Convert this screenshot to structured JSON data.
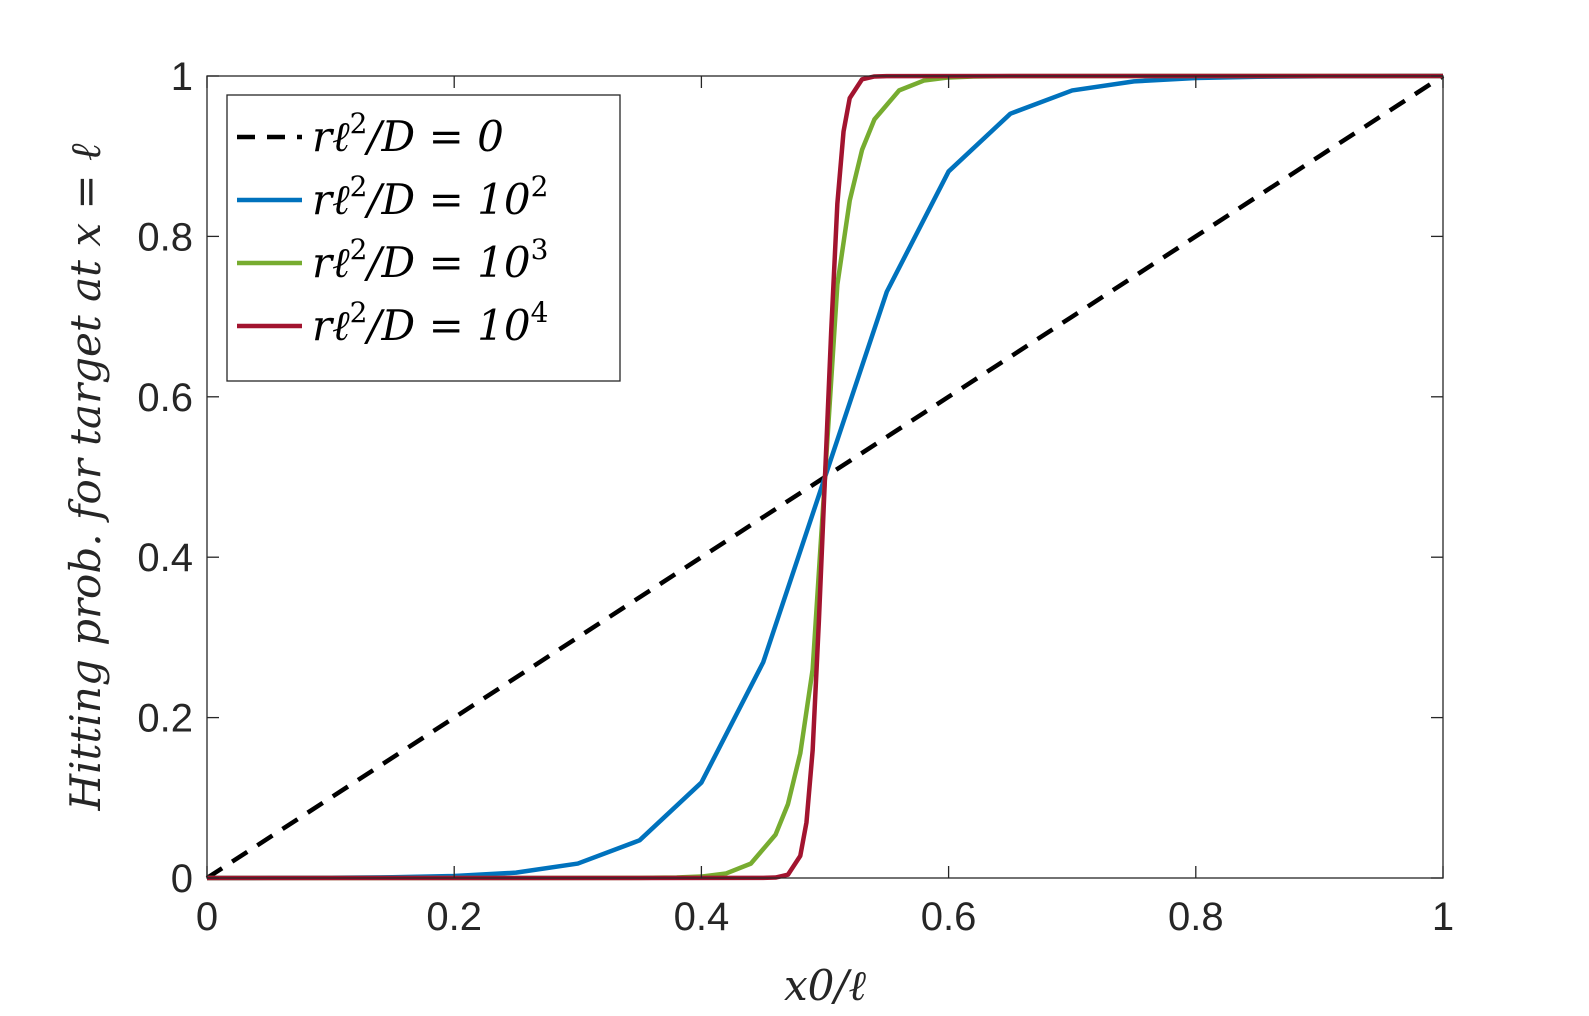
{
  "chart_data": {
    "type": "line",
    "xlabel": "x0/ℓ",
    "ylabel": "Hitting prob. for target at x = ℓ",
    "xlim": [
      0,
      1
    ],
    "ylim": [
      0,
      1
    ],
    "xticks": [
      "0",
      "0.2",
      "0.4",
      "0.6",
      "0.8",
      "1"
    ],
    "yticks": [
      "0",
      "0.2",
      "0.4",
      "0.6",
      "0.8",
      "1"
    ],
    "grid": false,
    "legend_position": "top-left",
    "series": [
      {
        "name": "rℓ²/D = 0",
        "label_main": "rℓ",
        "label_sup": "2",
        "label_rest": "/D = 0",
        "color": "#000000",
        "style": "dashed",
        "x": [
          0,
          0.1,
          0.2,
          0.3,
          0.4,
          0.5,
          0.6,
          0.7,
          0.8,
          0.9,
          1.0
        ],
        "y": [
          0,
          0.1,
          0.2,
          0.3,
          0.4,
          0.5,
          0.6,
          0.7,
          0.8,
          0.9,
          1.0
        ]
      },
      {
        "name": "rℓ²/D = 10²",
        "label_main": "rℓ",
        "label_sup": "2",
        "label_rest": "/D = 10",
        "label_sup2": "2",
        "color": "#0072BD",
        "style": "solid",
        "x": [
          0,
          0.05,
          0.1,
          0.15,
          0.2,
          0.25,
          0.3,
          0.35,
          0.4,
          0.45,
          0.5,
          0.55,
          0.6,
          0.65,
          0.7,
          0.75,
          0.8,
          0.85,
          0.9,
          0.95,
          1.0
        ],
        "y": [
          0,
          0.0001,
          0.0003,
          0.0009,
          0.0025,
          0.0067,
          0.018,
          0.047,
          0.119,
          0.269,
          0.5,
          0.731,
          0.881,
          0.953,
          0.982,
          0.9933,
          0.9975,
          0.9991,
          0.9997,
          0.9999,
          1.0
        ]
      },
      {
        "name": "rℓ²/D = 10³",
        "label_main": "rℓ",
        "label_sup": "2",
        "label_rest": "/D = 10",
        "label_sup2": "3",
        "color": "#77AC30",
        "style": "solid",
        "x": [
          0,
          0.35,
          0.38,
          0.4,
          0.42,
          0.44,
          0.46,
          0.47,
          0.48,
          0.49,
          0.5,
          0.51,
          0.52,
          0.53,
          0.54,
          0.56,
          0.58,
          0.6,
          0.62,
          0.65,
          1.0
        ],
        "y": [
          0,
          0.0001,
          0.0006,
          0.0018,
          0.0057,
          0.0179,
          0.0541,
          0.092,
          0.1554,
          0.2601,
          0.5,
          0.7399,
          0.8446,
          0.908,
          0.9459,
          0.9821,
          0.9943,
          0.9982,
          0.9994,
          0.9999,
          1.0
        ]
      },
      {
        "name": "rℓ²/D = 10⁴",
        "label_main": "rℓ",
        "label_sup": "2",
        "label_rest": "/D = 10",
        "label_sup2": "4",
        "color": "#A2142F",
        "style": "solid",
        "x": [
          0,
          0.45,
          0.46,
          0.47,
          0.48,
          0.485,
          0.49,
          0.495,
          0.5,
          0.505,
          0.51,
          0.515,
          0.52,
          0.53,
          0.54,
          0.55,
          1.0
        ],
        "y": [
          0,
          0.0001,
          0.0006,
          0.0041,
          0.0276,
          0.0692,
          0.159,
          0.3187,
          0.5,
          0.6813,
          0.841,
          0.9308,
          0.9724,
          0.9959,
          0.9994,
          0.9999,
          1.0
        ]
      }
    ]
  }
}
